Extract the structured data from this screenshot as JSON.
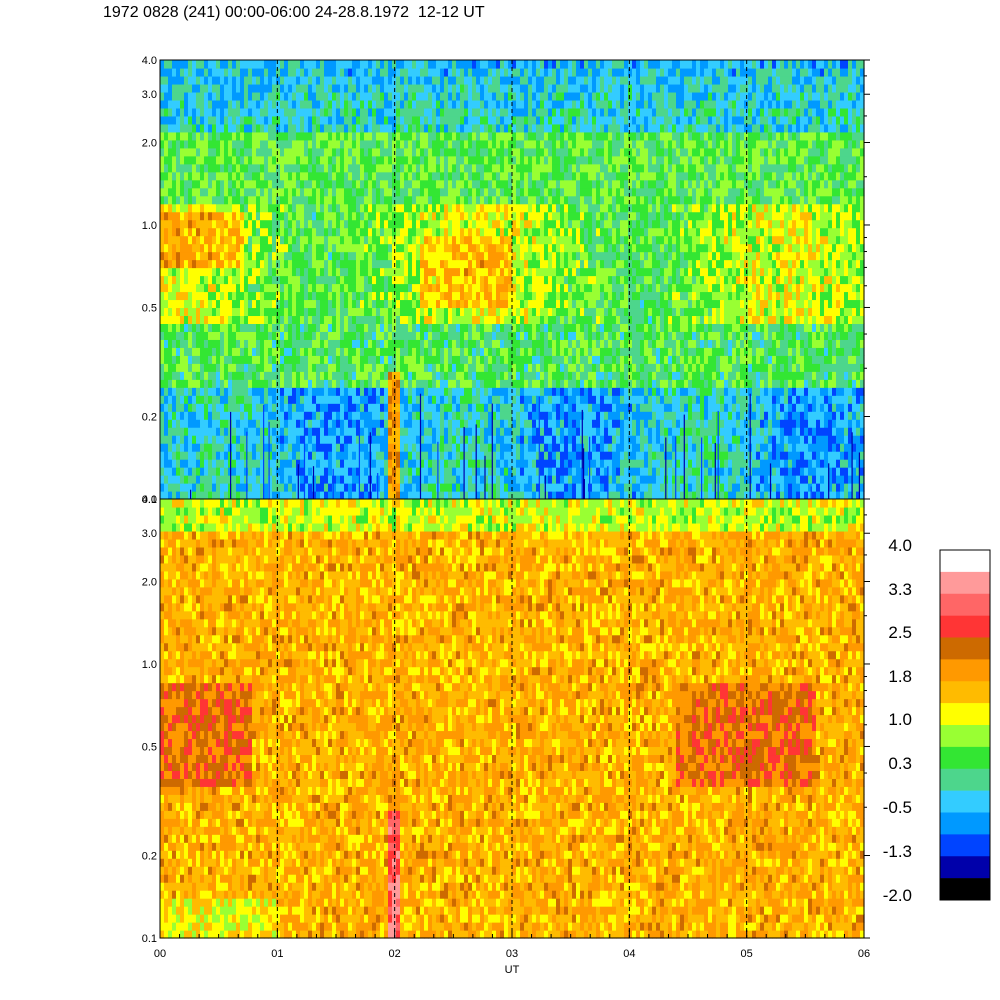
{
  "header": {
    "title": "1972 0828 (241) 00:00-06:00 24-28.8.1972  12-12 UT"
  },
  "chart_data": {
    "type": "heatmap",
    "title": "1972 0828 (241) 00:00-06:00 24-28.8.1972  12-12 UT",
    "xlabel": "UT",
    "x_ticks": [
      "00",
      "01",
      "02",
      "03",
      "04",
      "05",
      "06"
    ],
    "xlim": [
      0,
      6
    ],
    "y_scale": "log",
    "ylim": [
      0.1,
      4.0
    ],
    "y_ticks": [
      "0.1",
      "0.2",
      "0.5",
      "1.0",
      "2.0",
      "3.0",
      "4.0"
    ],
    "hour_markers": [
      1,
      2,
      3,
      4,
      5
    ],
    "panels": [
      {
        "name": "upper",
        "dominant_level": 0.3,
        "features": [
          "blue/cyan band below 0.25 with scattered dark-blue vertical streaks",
          "yellow-orange band around 0.6-1.1 near 00:00-00:40 and 02:20-03:00",
          "narrow orange vertical spike near 02:00 below 0.3"
        ]
      },
      {
        "name": "lower",
        "dominant_level": 1.8,
        "features": [
          "orange background with yellow speckle",
          "dark orange patches around 0.4-0.8",
          "red vertical spike near 02:00 below 0.3"
        ]
      }
    ],
    "colorbar": {
      "labels": [
        "4.0",
        "3.3",
        "2.5",
        "1.8",
        "1.0",
        "0.3",
        "-0.5",
        "-1.3",
        "-2.0"
      ],
      "colors": [
        "#ffffff",
        "#ff9a9a",
        "#ff6666",
        "#ff3535",
        "#cd6a00",
        "#ff9900",
        "#ffbb00",
        "#ffff00",
        "#99ff33",
        "#33e633",
        "#4dd68c",
        "#33ccff",
        "#0099ff",
        "#0044ff",
        "#0000aa",
        "#000000"
      ]
    }
  }
}
